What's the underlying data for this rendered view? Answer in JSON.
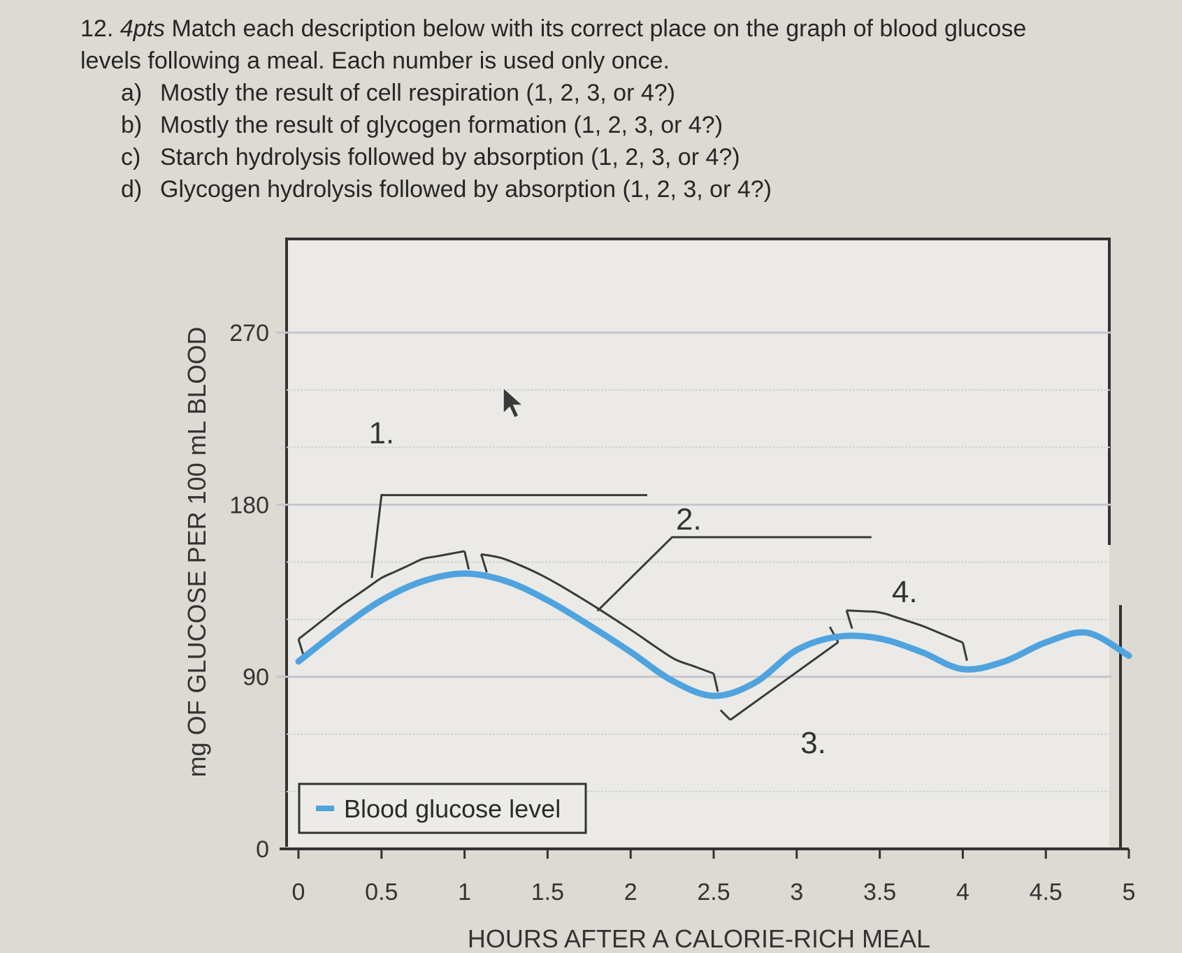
{
  "question": {
    "number": "12.",
    "points": "4pts",
    "prompt_1": "Match each description below with its correct place on the graph of blood glucose",
    "prompt_2": "levels following a meal. Each number is used only once.",
    "options": [
      {
        "letter": "a)",
        "text": "Mostly the result of cell respiration (1, 2, 3, or 4?)"
      },
      {
        "letter": "b)",
        "text": "Mostly the result of glycogen formation (1, 2, 3, or 4?)"
      },
      {
        "letter": "c)",
        "text": "Starch hydrolysis followed by absorption (1, 2, 3, or 4?)"
      },
      {
        "letter": "d)",
        "text": "Glycogen hydrolysis followed by absorption (1, 2, 3, or 4?)"
      }
    ]
  },
  "chart_data": {
    "type": "line",
    "title": "",
    "xlabel": "HOURS AFTER A CALORIE-RICH MEAL",
    "ylabel": "mg OF GLUCOSE PER 100 mL BLOOD",
    "xlim": [
      0,
      5
    ],
    "ylim": [
      0,
      270
    ],
    "x_ticks": [
      0,
      0.5,
      1,
      1.5,
      2,
      2.5,
      3,
      3.5,
      4,
      4.5,
      5
    ],
    "x_tick_labels": [
      "0",
      "0.5",
      "1",
      "1.5",
      "2",
      "2.5",
      "3",
      "3.5",
      "4",
      "4.5",
      "5"
    ],
    "y_ticks": [
      0,
      90,
      180,
      270
    ],
    "y_tick_labels": [
      "0",
      "90",
      "180",
      "270"
    ],
    "grid": true,
    "legend": {
      "position": "bottom-left",
      "entries": [
        "Blood glucose level"
      ]
    },
    "series": [
      {
        "name": "Blood glucose level",
        "color": "#4fa3de",
        "x": [
          0,
          0.25,
          0.5,
          0.75,
          1,
          1.25,
          1.5,
          1.75,
          2,
          2.25,
          2.5,
          2.75,
          3,
          3.25,
          3.5,
          3.75,
          4,
          4.25,
          4.5,
          4.75,
          5
        ],
        "y": [
          98,
          115,
          130,
          140,
          144,
          140,
          130,
          117,
          103,
          88,
          80,
          87,
          104,
          111,
          110,
          103,
          94,
          98,
          108,
          113,
          101
        ]
      }
    ],
    "annotations": [
      {
        "label": "1.",
        "x_range": [
          0,
          1
        ],
        "label_pos": [
          0.5,
          212
        ]
      },
      {
        "label": "2.",
        "x_range": [
          1.1,
          2.5
        ],
        "label_pos": [
          2.35,
          167
        ]
      },
      {
        "label": "3.",
        "x_range": [
          2.6,
          3.25
        ],
        "label_pos": [
          3.1,
          50
        ]
      },
      {
        "label": "4.",
        "x_range": [
          3.3,
          4
        ],
        "label_pos": [
          3.65,
          129
        ]
      }
    ]
  }
}
